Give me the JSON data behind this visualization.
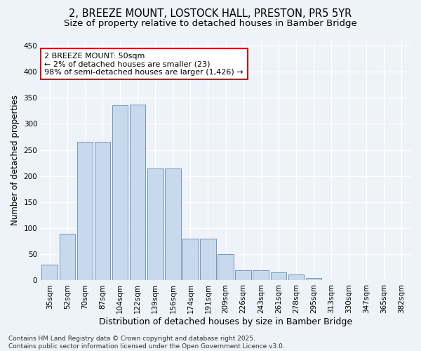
{
  "title": "2, BREEZE MOUNT, LOSTOCK HALL, PRESTON, PR5 5YR",
  "subtitle": "Size of property relative to detached houses in Bamber Bridge",
  "xlabel": "Distribution of detached houses by size in Bamber Bridge",
  "ylabel": "Number of detached properties",
  "categories": [
    "35sqm",
    "52sqm",
    "70sqm",
    "87sqm",
    "104sqm",
    "122sqm",
    "139sqm",
    "156sqm",
    "174sqm",
    "191sqm",
    "209sqm",
    "226sqm",
    "243sqm",
    "261sqm",
    "278sqm",
    "295sqm",
    "313sqm",
    "330sqm",
    "347sqm",
    "365sqm",
    "382sqm"
  ],
  "values": [
    30,
    90,
    265,
    265,
    335,
    337,
    215,
    215,
    80,
    80,
    50,
    20,
    20,
    15,
    12,
    5,
    1,
    0,
    0,
    0,
    1
  ],
  "bar_color": "#c9d9ed",
  "bar_edge_color": "#7098bc",
  "ylim": [
    0,
    460
  ],
  "yticks": [
    0,
    50,
    100,
    150,
    200,
    250,
    300,
    350,
    400,
    450
  ],
  "annotation_text": "2 BREEZE MOUNT: 50sqm\n← 2% of detached houses are smaller (23)\n98% of semi-detached houses are larger (1,426) →",
  "annotation_box_facecolor": "#ffffff",
  "annotation_box_edgecolor": "#cc0000",
  "footer_text": "Contains HM Land Registry data © Crown copyright and database right 2025.\nContains public sector information licensed under the Open Government Licence v3.0.",
  "background_color": "#eef2f9",
  "grid_color": "#ffffff",
  "title_fontsize": 10.5,
  "subtitle_fontsize": 9.5,
  "tick_label_fontsize": 7.5,
  "ylabel_fontsize": 8.5,
  "xlabel_fontsize": 9,
  "annotation_fontsize": 8,
  "footer_fontsize": 6.5
}
